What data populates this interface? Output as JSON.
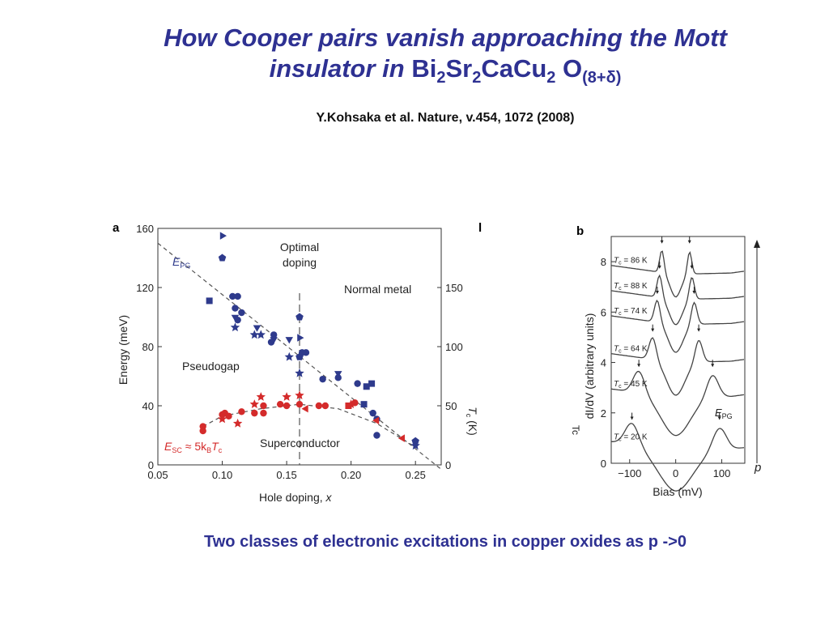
{
  "slide": {
    "title_italic_1": "How Cooper pairs vanish approaching the Mott",
    "title_italic_2": "insulator in",
    "formula": {
      "bi": "Bi",
      "bi_sub": "2",
      "sr": "Sr",
      "sr_sub": "2",
      "cacu": "CaCu",
      "cacu_sub": "2",
      "o": " O",
      "o_sub": "(8+δ)"
    },
    "reference": "Y.Kohsaka et al. Nature, v.454, 1072 (2008)",
    "caption": "Two classes of electronic excitations in copper oxides as p ->0"
  },
  "colors": {
    "title": "#2e3192",
    "blue_points": "#2e3a8c",
    "red_points": "#d42b2b",
    "red_label": "#d42b2b",
    "blue_label": "#2e3a8c"
  },
  "chart_data": [
    {
      "panel_label": "a",
      "type": "scatter",
      "xlabel": "Hole doping, x",
      "ylabel": "Energy (meV)",
      "y2label": "T_c (K)",
      "xlim": [
        0.05,
        0.27
      ],
      "ylim": [
        0,
        160
      ],
      "y2lim": [
        0,
        200
      ],
      "x_ticks": [
        "0.05",
        "0.10",
        "0.15",
        "0.20",
        "0.25"
      ],
      "x_tick_values": [
        0.05,
        0.1,
        0.15,
        0.2,
        0.25
      ],
      "y_ticks": [
        "0",
        "40",
        "80",
        "120",
        "160"
      ],
      "y_tick_values": [
        0,
        40,
        80,
        120,
        160
      ],
      "y2_ticks": [
        "0",
        "50",
        "100",
        "150"
      ],
      "y2_tick_values": [
        0,
        50,
        100,
        150
      ],
      "annotations": {
        "epg_label": "E",
        "epg_sub": "PG",
        "optimal": "Optimal",
        "doping": "doping",
        "normal_metal": "Normal metal",
        "pseudogap": "Pseudogap",
        "superconductor": "Superconductor",
        "esc_label": "E",
        "esc_sub": "SC",
        "esc_rest": " ≈ 5k",
        "esc_b": "B",
        "esc_t": "T",
        "esc_c": "c"
      },
      "optimal_doping_x": 0.16,
      "epg_line": [
        [
          0.05,
          150
        ],
        [
          0.27,
          -3
        ]
      ],
      "tc_dome": [
        [
          0.085,
          26
        ],
        [
          0.1,
          33
        ],
        [
          0.13,
          38
        ],
        [
          0.16,
          41
        ],
        [
          0.19,
          38
        ],
        [
          0.22,
          28
        ],
        [
          0.25,
          12
        ]
      ],
      "series": [
        {
          "name": "E_PG",
          "color": "#2e3a8c",
          "points": [
            [
              0.1,
              155,
              "tri-right"
            ],
            [
              0.1,
              140,
              "pent"
            ],
            [
              0.09,
              111,
              "square"
            ],
            [
              0.108,
              114,
              "circle"
            ],
            [
              0.112,
              114,
              "circle"
            ],
            [
              0.11,
              106,
              "circle"
            ],
            [
              0.115,
              103,
              "circle"
            ],
            [
              0.112,
              98,
              "circle"
            ],
            [
              0.11,
              100,
              "tri-down"
            ],
            [
              0.11,
              93,
              "star"
            ],
            [
              0.125,
              88,
              "star"
            ],
            [
              0.127,
              93,
              "tri-down"
            ],
            [
              0.13,
              88,
              "star"
            ],
            [
              0.14,
              88,
              "circle"
            ],
            [
              0.138,
              83,
              "circle"
            ],
            [
              0.14,
              85,
              "tri-down"
            ],
            [
              0.16,
              100,
              "pent"
            ],
            [
              0.16,
              86,
              "tri-right"
            ],
            [
              0.16,
              73,
              "pent"
            ],
            [
              0.162,
              76,
              "circle"
            ],
            [
              0.152,
              73,
              "star"
            ],
            [
              0.152,
              85,
              "tri-down"
            ],
            [
              0.16,
              62,
              "star"
            ],
            [
              0.165,
              76,
              "circle"
            ],
            [
              0.178,
              58,
              "circle"
            ],
            [
              0.19,
              62,
              "tri-down"
            ],
            [
              0.19,
              59,
              "circle"
            ],
            [
              0.205,
              55,
              "circle"
            ],
            [
              0.212,
              53,
              "square"
            ],
            [
              0.216,
              55,
              "square"
            ],
            [
              0.21,
              41,
              "square"
            ],
            [
              0.22,
              31,
              "circle"
            ],
            [
              0.217,
              35,
              "circle"
            ],
            [
              0.22,
              20,
              "circle"
            ],
            [
              0.25,
              16,
              "pent"
            ],
            [
              0.25,
              13,
              "star"
            ]
          ]
        },
        {
          "name": "E_SC",
          "color": "#d42b2b",
          "points": [
            [
              0.085,
              26,
              "circle"
            ],
            [
              0.085,
              23,
              "circle"
            ],
            [
              0.1,
              34,
              "circle"
            ],
            [
              0.102,
              35,
              "circle"
            ],
            [
              0.1,
              31,
              "star"
            ],
            [
              0.105,
              33,
              "circle"
            ],
            [
              0.112,
              28,
              "star"
            ],
            [
              0.115,
              36,
              "circle"
            ],
            [
              0.125,
              35,
              "circle"
            ],
            [
              0.125,
              41,
              "star"
            ],
            [
              0.13,
              46,
              "star"
            ],
            [
              0.132,
              40,
              "circle"
            ],
            [
              0.132,
              35,
              "circle"
            ],
            [
              0.145,
              41,
              "circle"
            ],
            [
              0.15,
              40,
              "circle"
            ],
            [
              0.15,
              46,
              "star"
            ],
            [
              0.16,
              47,
              "star"
            ],
            [
              0.16,
              41,
              "circle"
            ],
            [
              0.165,
              38,
              "tri-left"
            ],
            [
              0.175,
              40,
              "circle"
            ],
            [
              0.18,
              40,
              "circle"
            ],
            [
              0.198,
              40,
              "square"
            ],
            [
              0.2,
              41,
              "star"
            ],
            [
              0.203,
              42,
              "circle"
            ],
            [
              0.22,
              30,
              "tri-left"
            ],
            [
              0.24,
              18,
              "tri-left"
            ]
          ]
        }
      ]
    },
    {
      "panel_label": "b",
      "type": "line",
      "xlabel": "Bias (mV)",
      "ylabel": "dI/dV (arbitrary units)",
      "xlim": [
        -140,
        150
      ],
      "ylim": [
        0,
        9
      ],
      "x_ticks": [
        "−100",
        "0",
        "100"
      ],
      "x_tick_values": [
        -100,
        0,
        100
      ],
      "y_ticks": [
        "0",
        "2",
        "4",
        "6",
        "8"
      ],
      "y_tick_values": [
        0,
        2,
        4,
        6,
        8
      ],
      "p_label": "p",
      "epg_label": "E",
      "epg_sub": "PG",
      "series": [
        {
          "name": "T_c = 86 K",
          "tc": "86 K",
          "offset": 7.5,
          "peak": 30,
          "depth": 0.9
        },
        {
          "name": "T_c = 88 K",
          "tc": "88 K",
          "offset": 6.5,
          "peak": 35,
          "depth": 1.0
        },
        {
          "name": "T_c = 74 K",
          "tc": "74 K",
          "offset": 5.5,
          "peak": 40,
          "depth": 1.1
        },
        {
          "name": "T_c = 64 K",
          "tc": "64 K",
          "offset": 4.0,
          "peak": 50,
          "depth": 1.3
        },
        {
          "name": "T_c = 45 K",
          "tc": "45 K",
          "offset": 2.6,
          "peak": 80,
          "depth": 1.5
        },
        {
          "name": "T_c = 20 K",
          "tc": "20 K",
          "offset": 0.5,
          "peak": 95,
          "depth": 1.6
        }
      ]
    }
  ]
}
